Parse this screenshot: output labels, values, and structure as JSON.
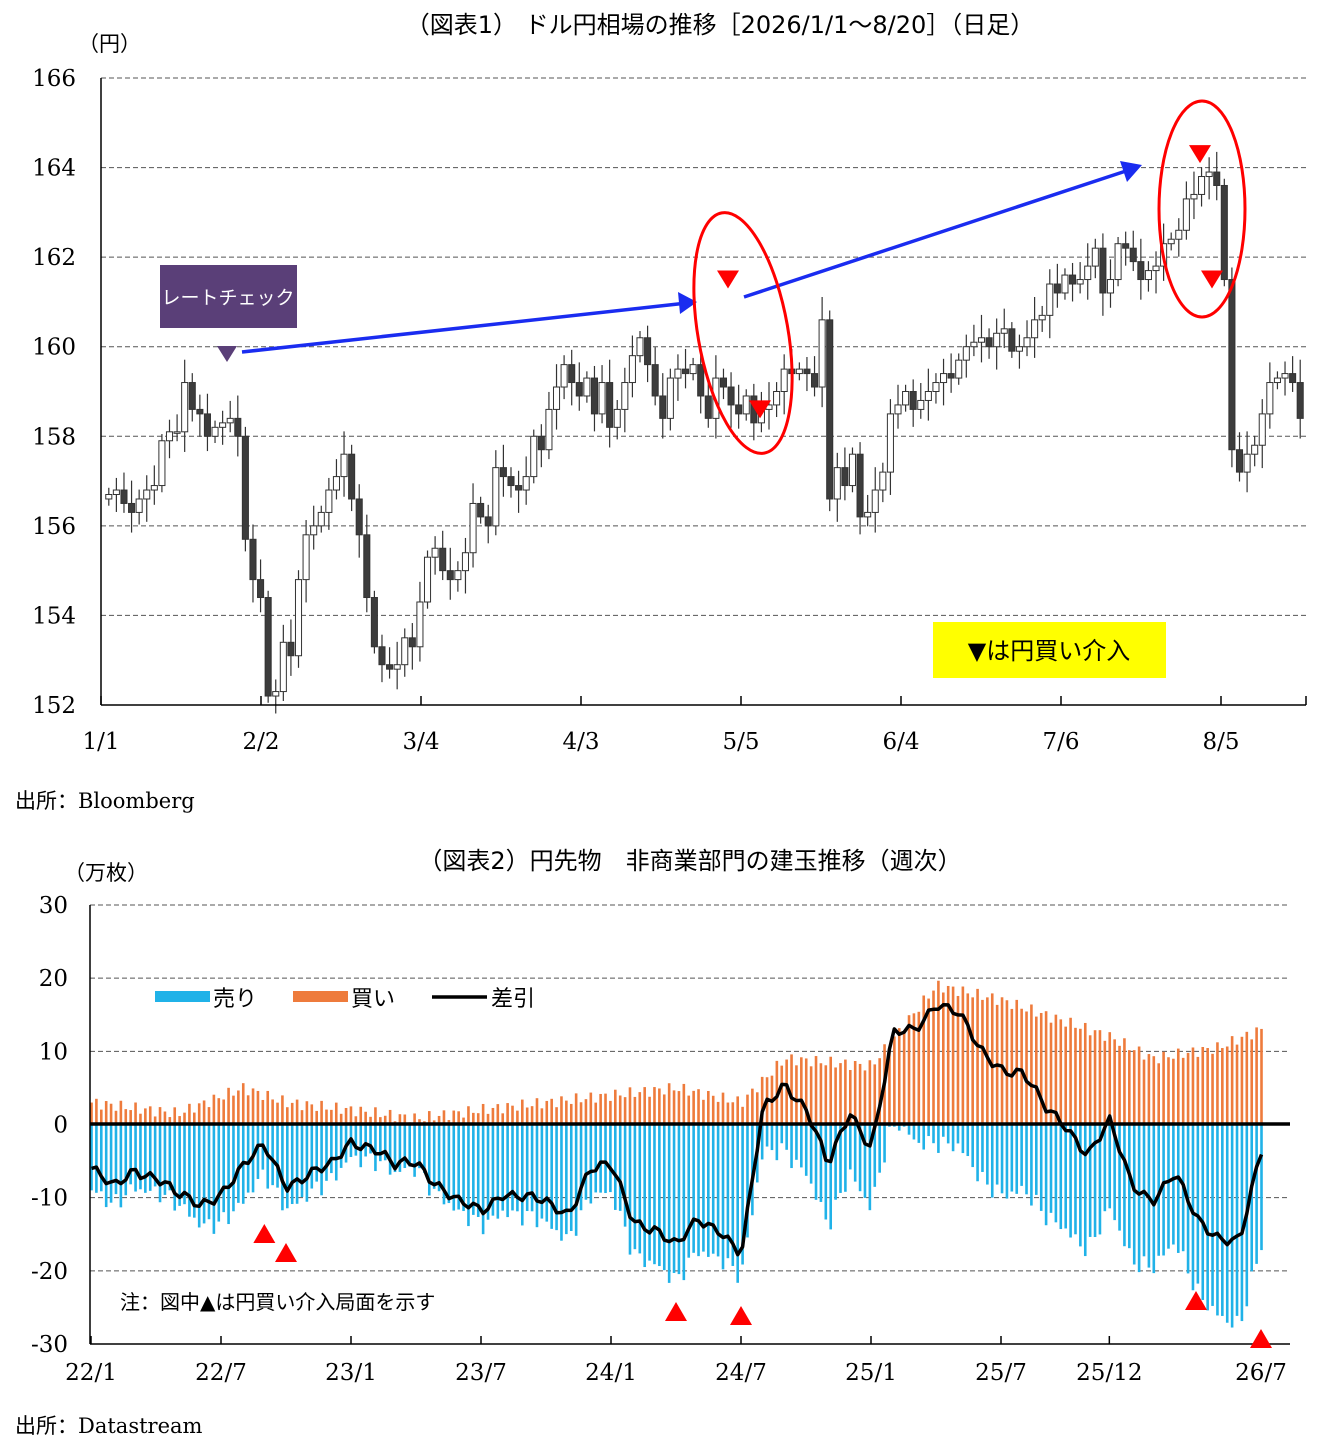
{
  "colors": {
    "candle_down": "#3c3c3c",
    "candle_up": "#ffffff",
    "wick": "#333333",
    "sell": "#20b2e8",
    "buy": "#ee7b3c",
    "net": "#000000",
    "intervention": "#ff0000",
    "arrow": "#1a2cf0",
    "rate_check_box": "#5a3f78",
    "note_box": "#ffff00"
  },
  "chart_data": [
    {
      "type": "candlestick",
      "title": "（図表1） ドル円相場の推移［2026/1/1～8/20］（日足）",
      "ylabel": "（円）",
      "ylim": [
        152,
        166
      ],
      "yticks": [
        152,
        154,
        156,
        158,
        160,
        162,
        164,
        166
      ],
      "xtick_labels": [
        "1/1",
        "2/2",
        "3/4",
        "4/3",
        "5/5",
        "6/4",
        "7/6",
        "8/5"
      ],
      "grid": "horizontal dashed",
      "source": "出所：Bloomberg",
      "legend_note": "▼は円買い介入",
      "rate_check_label": "レートチェック",
      "interventions_yen": [
        161.5,
        158.6,
        164.3,
        161.5
      ],
      "closes": [
        156.7,
        156.8,
        156.5,
        156.3,
        156.6,
        156.8,
        156.9,
        157.9,
        158.1,
        158.1,
        159.2,
        158.6,
        158.5,
        158.0,
        158.2,
        158.3,
        158.4,
        158.0,
        155.7,
        154.8,
        154.4,
        152.2,
        152.3,
        153.4,
        153.1,
        154.8,
        155.8,
        156.0,
        156.3,
        156.8,
        157.1,
        157.6,
        156.6,
        155.8,
        154.4,
        153.3,
        152.9,
        152.8,
        152.9,
        153.5,
        153.3,
        154.3,
        155.3,
        155.5,
        155.0,
        154.8,
        155.0,
        155.4,
        156.5,
        156.2,
        156.0,
        157.3,
        157.1,
        156.9,
        156.8,
        157.1,
        158.0,
        157.7,
        158.6,
        159.1,
        159.6,
        159.2,
        158.9,
        159.3,
        158.5,
        159.2,
        158.2,
        158.6,
        159.2,
        159.8,
        160.2,
        159.6,
        158.9,
        158.4,
        159.3,
        159.5,
        159.4,
        159.6,
        158.9,
        158.4,
        159.3,
        159.1,
        158.7,
        158.5,
        158.9,
        158.3,
        158.6,
        158.7,
        159.0,
        159.5,
        159.4,
        159.5,
        159.4,
        159.1,
        160.6,
        156.6,
        157.3,
        156.9,
        157.6,
        156.2,
        156.3,
        156.8,
        157.2,
        158.5,
        158.7,
        159.0,
        158.6,
        158.8,
        159.0,
        159.2,
        159.4,
        159.3,
        159.7,
        160.0,
        160.1,
        160.2,
        160.0,
        160.3,
        160.4,
        159.9,
        160.0,
        160.2,
        160.6,
        160.7,
        161.4,
        161.2,
        161.6,
        161.4,
        161.5,
        161.8,
        162.2,
        161.2,
        161.5,
        162.3,
        162.2,
        161.9,
        161.5,
        161.7,
        161.8,
        162.3,
        162.4,
        162.6,
        163.3,
        163.4,
        163.8,
        163.9,
        163.6,
        161.5,
        157.7,
        157.2,
        157.6,
        157.8,
        158.5,
        159.2,
        159.3,
        159.4,
        159.2,
        158.4
      ]
    },
    {
      "type": "bar+line",
      "title": "（図表2）円先物　非商業部門の建玉推移（週次）",
      "ylabel": "（万枚）",
      "ylim": [
        -30,
        30
      ],
      "yticks": [
        -30,
        -20,
        -10,
        0,
        10,
        20,
        30
      ],
      "xtick_labels": [
        "22/1",
        "22/7",
        "23/1",
        "23/7",
        "24/1",
        "24/7",
        "25/1",
        "25/7",
        "25/12",
        "26/7"
      ],
      "series": [
        {
          "name": "売り",
          "type": "bar"
        },
        {
          "name": "買い",
          "type": "bar"
        },
        {
          "name": "差引",
          "type": "line"
        }
      ],
      "note": "注：図中▲は円買い介入局面を示す",
      "source": "出所：Datastream",
      "net_keypoints": [
        [
          "22/1",
          -6
        ],
        [
          "22/2",
          -9
        ],
        [
          "22/3",
          -6
        ],
        [
          "22/4",
          -7
        ],
        [
          "22/5",
          -10
        ],
        [
          "22/6",
          -11
        ],
        [
          "22/7",
          -9
        ],
        [
          "22/8",
          -6
        ],
        [
          "22/9",
          -3
        ],
        [
          "22/10",
          -8
        ],
        [
          "22/11",
          -7
        ],
        [
          "22/12",
          -6
        ],
        [
          "23/1",
          -2
        ],
        [
          "23/2",
          -3
        ],
        [
          "23/3",
          -6
        ],
        [
          "23/4",
          -5
        ],
        [
          "23/5",
          -8
        ],
        [
          "23/6",
          -11
        ],
        [
          "23/7",
          -12
        ],
        [
          "23/8",
          -9
        ],
        [
          "23/9",
          -10
        ],
        [
          "23/10",
          -11
        ],
        [
          "23/11",
          -12
        ],
        [
          "23/12",
          -6
        ],
        [
          "24/1",
          -6
        ],
        [
          "24/2",
          -13
        ],
        [
          "24/3",
          -14
        ],
        [
          "24/4",
          -17
        ],
        [
          "24/5",
          -13
        ],
        [
          "24/6",
          -14
        ],
        [
          "24/7",
          -18
        ],
        [
          "24/8",
          2
        ],
        [
          "24/9",
          6
        ],
        [
          "24/10",
          2
        ],
        [
          "24/11",
          -6
        ],
        [
          "24/12",
          2
        ],
        [
          "25/1",
          -3
        ],
        [
          "25/2",
          12
        ],
        [
          "25/3",
          13
        ],
        [
          "25/4",
          17
        ],
        [
          "25/5",
          15
        ],
        [
          "25/6",
          10
        ],
        [
          "25/7",
          8
        ],
        [
          "25/8",
          7
        ],
        [
          "25/9",
          2
        ],
        [
          "25/10",
          0
        ],
        [
          "25/11",
          -4
        ],
        [
          "25/12",
          0
        ],
        [
          "26/1",
          -8
        ],
        [
          "26/2",
          -10
        ],
        [
          "26/3",
          -7
        ],
        [
          "26/4",
          -13
        ],
        [
          "26/5",
          -15
        ],
        [
          "26/6",
          -16
        ],
        [
          "26/7",
          -4
        ]
      ],
      "buy_keypoints": [
        [
          "22/1",
          3
        ],
        [
          "22/5",
          1.5
        ],
        [
          "22/8",
          5
        ],
        [
          "22/10",
          3
        ],
        [
          "23/1",
          2
        ],
        [
          "23/4",
          0.8
        ],
        [
          "23/7",
          2
        ],
        [
          "23/10",
          3
        ],
        [
          "24/1",
          4
        ],
        [
          "24/4",
          5
        ],
        [
          "24/7",
          3
        ],
        [
          "24/9",
          9
        ],
        [
          "25/1",
          8
        ],
        [
          "25/4",
          19
        ],
        [
          "25/7",
          17
        ],
        [
          "25/12",
          12
        ],
        [
          "26/2",
          9
        ],
        [
          "26/5",
          10.5
        ],
        [
          "26/7",
          13
        ]
      ],
      "intervention_dates": [
        "22/9",
        "22/10",
        "24/4",
        "24/7",
        "26/4",
        "26/7"
      ]
    }
  ]
}
